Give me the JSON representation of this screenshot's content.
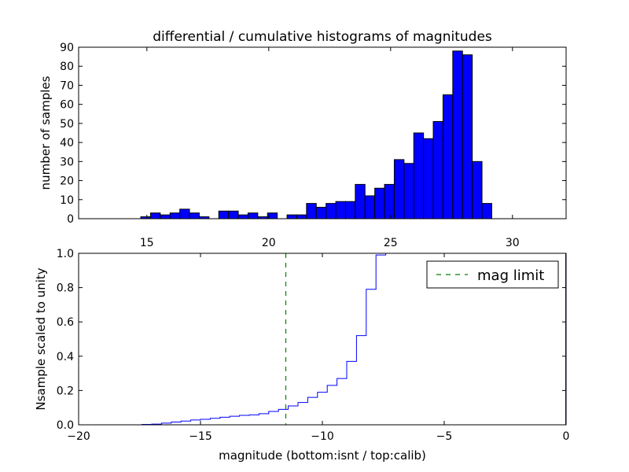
{
  "colors": {
    "bar_fill": "#0000ff",
    "bar_edge": "#000000",
    "step_line": "#0000ff",
    "limit_line": "#008000",
    "axes": "#000000",
    "background": "#ffffff"
  },
  "chart_data": [
    {
      "type": "bar",
      "title": "differential / cumulative histograms of magnitudes",
      "xlabel": "",
      "ylabel": "number of samples",
      "xlim": [
        12.2,
        32.2
      ],
      "ylim": [
        0,
        90
      ],
      "xticks": [
        "15",
        "20",
        "25",
        "30"
      ],
      "xtick_values": [
        15,
        20,
        25,
        30
      ],
      "yticks": [
        "0",
        "10",
        "20",
        "30",
        "40",
        "50",
        "60",
        "70",
        "80",
        "90"
      ],
      "ytick_values": [
        0,
        10,
        20,
        30,
        40,
        50,
        60,
        70,
        80,
        90
      ],
      "xtick_position": "bottom-outside",
      "grid": false,
      "bin_edges": [
        14.75,
        15.15,
        15.55,
        15.95,
        16.35,
        16.75,
        17.15,
        17.55,
        17.95,
        18.35,
        18.75,
        19.15,
        19.55,
        19.95,
        20.35,
        20.75,
        21.15,
        21.55,
        21.95,
        22.35,
        22.75,
        23.15,
        23.55,
        23.95,
        24.35,
        24.75,
        25.15,
        25.55,
        25.95,
        26.35,
        26.75,
        27.15,
        27.55,
        27.95,
        28.35,
        28.75,
        29.15,
        29.55,
        29.95
      ],
      "counts": [
        1,
        3,
        2,
        3,
        5,
        3,
        1,
        0,
        4,
        4,
        2,
        3,
        1,
        3,
        0,
        2,
        2,
        8,
        6,
        8,
        9,
        9,
        18,
        12,
        16,
        18,
        31,
        29,
        45,
        42,
        51,
        65,
        88,
        86,
        30,
        8,
        0,
        0
      ]
    },
    {
      "type": "line",
      "title": "",
      "xlabel": "magnitude (bottom:isnt / top:calib)",
      "ylabel": "Nsample scaled to unity",
      "xlim": [
        -20,
        0
      ],
      "ylim": [
        0,
        1.0
      ],
      "xticks": [
        "−20",
        "−15",
        "−10",
        "−5",
        "0"
      ],
      "xtick_values": [
        -20,
        -15,
        -10,
        -5,
        0
      ],
      "yticks": [
        "0.0",
        "0.2",
        "0.4",
        "0.6",
        "0.8",
        "1.0"
      ],
      "ytick_values": [
        0,
        0.2,
        0.4,
        0.6,
        0.8,
        1.0
      ],
      "grid": false,
      "legend_position": "top-right",
      "series": [
        {
          "name": "",
          "style": "step",
          "x": [
            -20,
            -17.4,
            -17,
            -16.6,
            -16.2,
            -15.8,
            -15.4,
            -15,
            -14.6,
            -14.2,
            -13.8,
            -13.4,
            -13,
            -12.6,
            -12.2,
            -11.8,
            -11.4,
            -11,
            -10.6,
            -10.2,
            -9.8,
            -9.4,
            -9,
            -8.6,
            -8.2,
            -7.8,
            -7.4
          ],
          "y": [
            0.0,
            0.002,
            0.004,
            0.01,
            0.016,
            0.022,
            0.028,
            0.032,
            0.038,
            0.044,
            0.05,
            0.055,
            0.058,
            0.065,
            0.078,
            0.09,
            0.11,
            0.13,
            0.16,
            0.19,
            0.23,
            0.27,
            0.37,
            0.52,
            0.79,
            0.99,
            1.0
          ]
        }
      ],
      "reference_lines": [
        {
          "name": "mag limit",
          "orientation": "vertical",
          "x": -11.5,
          "style": "dashed"
        }
      ]
    }
  ]
}
